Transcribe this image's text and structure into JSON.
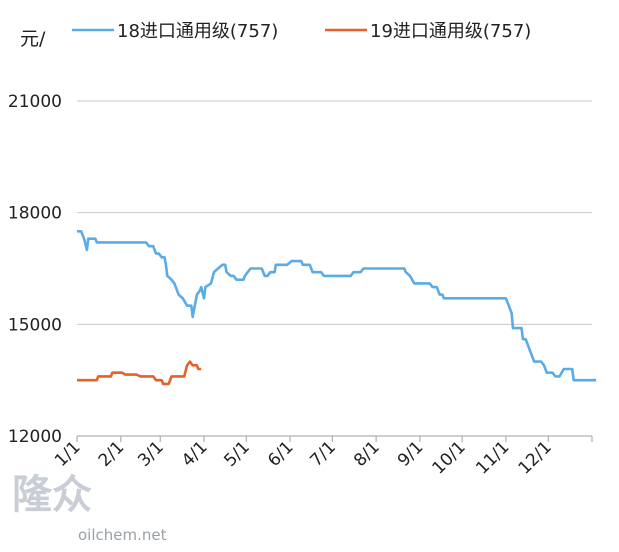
{
  "chart_data": {
    "type": "line",
    "title": "",
    "ylabel": "元/",
    "xlabel": "",
    "ylim": [
      12000,
      21000
    ],
    "yticks": [
      12000,
      15000,
      18000,
      21000
    ],
    "xlim": [
      1,
      366
    ],
    "xticks": [
      {
        "day": 1,
        "label": "1/1"
      },
      {
        "day": 32,
        "label": "2/1"
      },
      {
        "day": 60,
        "label": "3/1"
      },
      {
        "day": 91,
        "label": "4/1"
      },
      {
        "day": 121,
        "label": "5/1"
      },
      {
        "day": 152,
        "label": "6/1"
      },
      {
        "day": 182,
        "label": "7/1"
      },
      {
        "day": 213,
        "label": "8/1"
      },
      {
        "day": 244,
        "label": "9/1"
      },
      {
        "day": 274,
        "label": "10/1"
      },
      {
        "day": 305,
        "label": "11/1"
      },
      {
        "day": 335,
        "label": "12/1"
      }
    ],
    "grid": "horizontal",
    "legend_position": "top",
    "series": [
      {
        "name": "18进口通用级(757)",
        "color": "#5aabe6",
        "points": [
          [
            1,
            17500
          ],
          [
            4,
            17500
          ],
          [
            6,
            17300
          ],
          [
            8,
            17000
          ],
          [
            9,
            17300
          ],
          [
            14,
            17300
          ],
          [
            15,
            17200
          ],
          [
            50,
            17200
          ],
          [
            52,
            17100
          ],
          [
            55,
            17100
          ],
          [
            57,
            16900
          ],
          [
            59,
            16900
          ],
          [
            61,
            16800
          ],
          [
            63,
            16800
          ],
          [
            64,
            16600
          ],
          [
            65,
            16300
          ],
          [
            68,
            16200
          ],
          [
            70,
            16100
          ],
          [
            73,
            15800
          ],
          [
            76,
            15700
          ],
          [
            79,
            15500
          ],
          [
            82,
            15500
          ],
          [
            83,
            15200
          ],
          [
            85,
            15600
          ],
          [
            86,
            15800
          ],
          [
            88,
            15900
          ],
          [
            89,
            16000
          ],
          [
            91,
            15700
          ],
          [
            92,
            16000
          ],
          [
            96,
            16100
          ],
          [
            98,
            16400
          ],
          [
            101,
            16500
          ],
          [
            104,
            16600
          ],
          [
            106,
            16600
          ],
          [
            107,
            16400
          ],
          [
            110,
            16300
          ],
          [
            112,
            16300
          ],
          [
            114,
            16200
          ],
          [
            119,
            16200
          ],
          [
            120,
            16300
          ],
          [
            124,
            16500
          ],
          [
            132,
            16500
          ],
          [
            134,
            16300
          ],
          [
            136,
            16300
          ],
          [
            138,
            16400
          ],
          [
            141,
            16400
          ],
          [
            142,
            16600
          ],
          [
            150,
            16600
          ],
          [
            153,
            16700
          ],
          [
            160,
            16700
          ],
          [
            161,
            16600
          ],
          [
            166,
            16600
          ],
          [
            168,
            16400
          ],
          [
            174,
            16400
          ],
          [
            176,
            16300
          ],
          [
            195,
            16300
          ],
          [
            197,
            16400
          ],
          [
            202,
            16400
          ],
          [
            204,
            16500
          ],
          [
            233,
            16500
          ],
          [
            234,
            16400
          ],
          [
            237,
            16300
          ],
          [
            240,
            16100
          ],
          [
            251,
            16100
          ],
          [
            253,
            16000
          ],
          [
            256,
            16000
          ],
          [
            258,
            15800
          ],
          [
            260,
            15800
          ],
          [
            261,
            15700
          ],
          [
            305,
            15700
          ],
          [
            307,
            15500
          ],
          [
            309,
            15300
          ],
          [
            310,
            14900
          ],
          [
            316,
            14900
          ],
          [
            317,
            14600
          ],
          [
            319,
            14600
          ],
          [
            322,
            14300
          ],
          [
            325,
            14000
          ],
          [
            330,
            14000
          ],
          [
            332,
            13900
          ],
          [
            334,
            13700
          ],
          [
            338,
            13700
          ],
          [
            340,
            13600
          ],
          [
            343,
            13600
          ],
          [
            346,
            13800
          ],
          [
            352,
            13800
          ],
          [
            353,
            13500
          ],
          [
            369,
            13500
          ]
        ]
      },
      {
        "name": "19进口通用级(757)",
        "color": "#e5612c",
        "points": [
          [
            1,
            13500
          ],
          [
            15,
            13500
          ],
          [
            16,
            13600
          ],
          [
            25,
            13600
          ],
          [
            26,
            13700
          ],
          [
            33,
            13700
          ],
          [
            35,
            13650
          ],
          [
            43,
            13650
          ],
          [
            46,
            13600
          ],
          [
            55,
            13600
          ],
          [
            57,
            13500
          ],
          [
            61,
            13500
          ],
          [
            62,
            13400
          ],
          [
            66,
            13400
          ],
          [
            68,
            13600
          ],
          [
            77,
            13600
          ],
          [
            79,
            13900
          ],
          [
            81,
            14000
          ],
          [
            83,
            13900
          ],
          [
            86,
            13900
          ],
          [
            87,
            13800
          ],
          [
            89,
            13800
          ]
        ]
      }
    ]
  },
  "watermark": {
    "text": "oilchem.net",
    "logo": "隆众"
  }
}
